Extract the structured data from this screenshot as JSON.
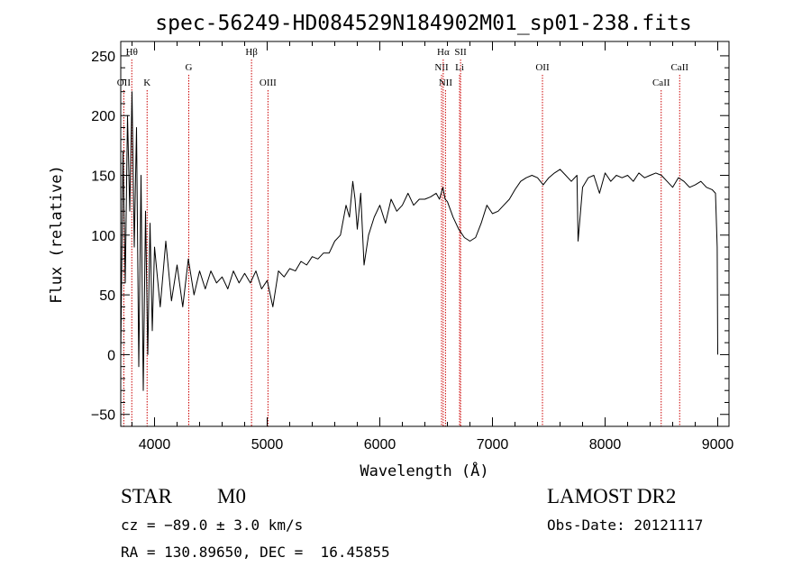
{
  "chart_data": {
    "type": "line",
    "title": "spec-56249-HD084529N184902M01_sp01-238.fits",
    "xlabel": "Wavelength (Å)",
    "ylabel": "Flux (relative)",
    "xlim": [
      3700,
      9100
    ],
    "ylim": [
      -60,
      262
    ],
    "xticks": [
      {
        "value": 4000,
        "label": "4000"
      },
      {
        "value": 5000,
        "label": "5000"
      },
      {
        "value": 6000,
        "label": "6000"
      },
      {
        "value": 7000,
        "label": "7000"
      },
      {
        "value": 8000,
        "label": "8000"
      },
      {
        "value": 9000,
        "label": "9000"
      }
    ],
    "yticks": [
      {
        "value": -50,
        "label": "−50"
      },
      {
        "value": 0,
        "label": "0"
      },
      {
        "value": 50,
        "label": "50"
      },
      {
        "value": 100,
        "label": "100"
      },
      {
        "value": 150,
        "label": "150"
      },
      {
        "value": 200,
        "label": "200"
      },
      {
        "value": 250,
        "label": "250"
      }
    ],
    "grid": false,
    "line_color": "#000000",
    "marker_color": "#cc0000",
    "lines": [
      {
        "wavelength": 3727,
        "label": "OII",
        "row": 3
      },
      {
        "wavelength": 3798,
        "label": "Hθ",
        "row": 1
      },
      {
        "wavelength": 3934,
        "label": "K",
        "row": 3
      },
      {
        "wavelength": 4304,
        "label": "G",
        "row": 2
      },
      {
        "wavelength": 4861,
        "label": "Hβ",
        "row": 1
      },
      {
        "wavelength": 5007,
        "label": "OIII",
        "row": 3
      },
      {
        "wavelength": 6548,
        "label": "NII",
        "row": 2
      },
      {
        "wavelength": 6563,
        "label": "Hα",
        "row": 1
      },
      {
        "wavelength": 6583,
        "label": "NII",
        "row": 3
      },
      {
        "wavelength": 6708,
        "label": "Li",
        "row": 2
      },
      {
        "wavelength": 6717,
        "label": "SII",
        "row": 1
      },
      {
        "wavelength": 7444,
        "label": "OII",
        "row": 2
      },
      {
        "wavelength": 8498,
        "label": "CaII",
        "row": 3
      },
      {
        "wavelength": 8662,
        "label": "CaII",
        "row": 2
      }
    ],
    "series": [
      {
        "x": [
          3700,
          3720,
          3740,
          3760,
          3780,
          3800,
          3820,
          3840,
          3860,
          3880,
          3900,
          3920,
          3940,
          3960,
          3980,
          4000,
          4050,
          4100,
          4150,
          4200,
          4250,
          4300,
          4350,
          4400,
          4450,
          4500,
          4550,
          4600,
          4650,
          4700,
          4750,
          4800,
          4850,
          4900,
          4950,
          5000,
          5050,
          5100,
          5150,
          5200,
          5250,
          5300,
          5350,
          5400,
          5450,
          5500,
          5550,
          5600,
          5650,
          5700,
          5730,
          5760,
          5780,
          5800,
          5830,
          5860,
          5900,
          5950,
          6000,
          6050,
          6100,
          6150,
          6200,
          6250,
          6300,
          6350,
          6400,
          6450,
          6500,
          6530,
          6560,
          6580,
          6600,
          6650,
          6700,
          6750,
          6800,
          6850,
          6900,
          6950,
          7000,
          7050,
          7100,
          7150,
          7200,
          7250,
          7300,
          7350,
          7400,
          7450,
          7500,
          7550,
          7600,
          7650,
          7700,
          7750,
          7760,
          7800,
          7850,
          7900,
          7950,
          8000,
          8050,
          8100,
          8150,
          8200,
          8250,
          8300,
          8350,
          8400,
          8450,
          8500,
          8550,
          8600,
          8650,
          8700,
          8750,
          8800,
          8850,
          8900,
          8950,
          8980,
          8995,
          9000
        ],
        "y": [
          0,
          170,
          60,
          200,
          120,
          220,
          90,
          190,
          -10,
          150,
          -30,
          120,
          0,
          110,
          20,
          90,
          40,
          95,
          45,
          75,
          40,
          80,
          50,
          70,
          55,
          70,
          60,
          65,
          55,
          70,
          60,
          68,
          60,
          70,
          55,
          62,
          40,
          70,
          65,
          72,
          70,
          78,
          75,
          82,
          80,
          85,
          85,
          95,
          100,
          125,
          115,
          145,
          130,
          105,
          135,
          75,
          100,
          115,
          125,
          110,
          130,
          120,
          125,
          135,
          125,
          130,
          130,
          132,
          135,
          130,
          140,
          130,
          128,
          115,
          105,
          98,
          95,
          98,
          110,
          125,
          118,
          120,
          125,
          130,
          138,
          145,
          148,
          150,
          148,
          142,
          148,
          152,
          155,
          150,
          145,
          150,
          95,
          140,
          148,
          150,
          135,
          152,
          145,
          150,
          148,
          150,
          145,
          152,
          148,
          150,
          152,
          150,
          145,
          140,
          148,
          145,
          140,
          142,
          145,
          140,
          138,
          135,
          90,
          0
        ]
      }
    ]
  },
  "info": {
    "object_type": "STAR",
    "subclass": "M0",
    "survey": "LAMOST DR2",
    "redshift": "cz = −89.0 ± 3.0 km/s",
    "obs_date": "Obs-Date: 20121117",
    "coords": "RA = 130.89650, DEC =  16.45855"
  }
}
